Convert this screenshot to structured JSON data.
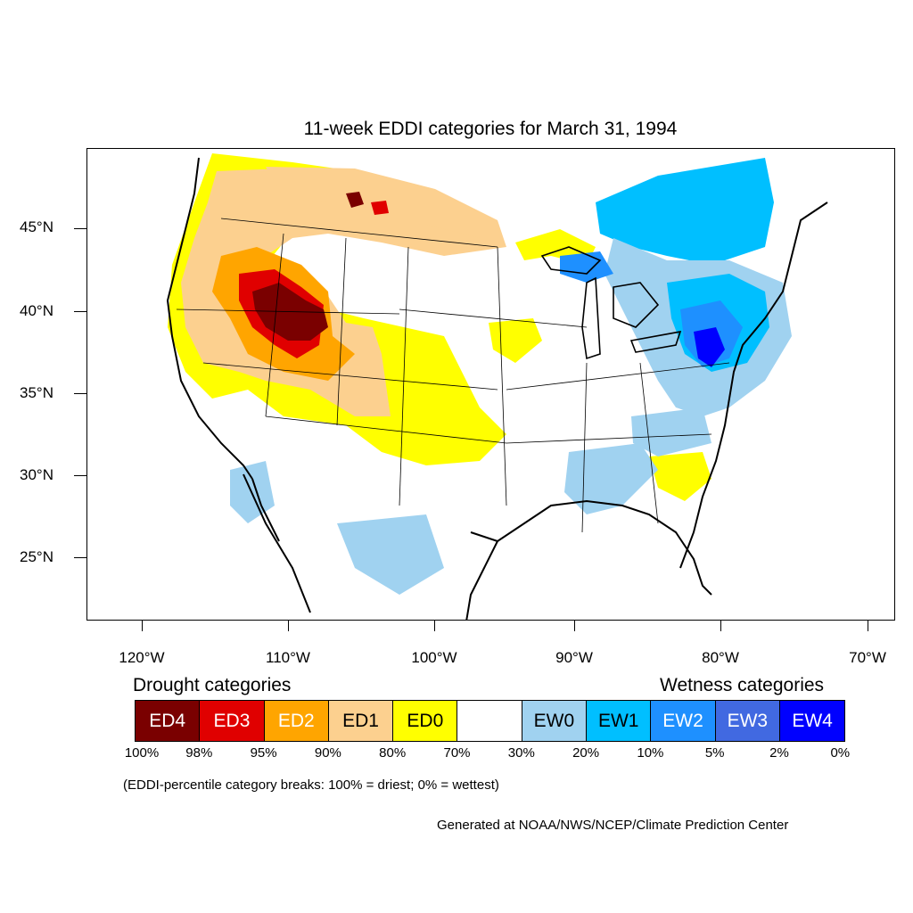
{
  "title": "11-week EDDI categories for March 31, 1994",
  "axes": {
    "y_labels": [
      "45°N",
      "40°N",
      "35°N",
      "30°N",
      "25°N"
    ],
    "x_labels": [
      "120°W",
      "110°W",
      "100°W",
      "90°W",
      "80°W",
      "70°W"
    ]
  },
  "legend": {
    "drought_heading": "Drought categories",
    "wetness_heading": "Wetness categories",
    "categories": [
      {
        "label": "ED4",
        "color": "#7a0000",
        "text_color": "#ffffff"
      },
      {
        "label": "ED3",
        "color": "#e00000",
        "text_color": "#ffffff"
      },
      {
        "label": "ED2",
        "color": "#ffa500",
        "text_color": "#ffffff"
      },
      {
        "label": "ED1",
        "color": "#fcd08f",
        "text_color": "#000000"
      },
      {
        "label": "ED0",
        "color": "#ffff00",
        "text_color": "#000000"
      },
      {
        "label": "",
        "color": "#ffffff",
        "text_color": "#000000"
      },
      {
        "label": "EW0",
        "color": "#a0d2f0",
        "text_color": "#000000"
      },
      {
        "label": "EW1",
        "color": "#00bfff",
        "text_color": "#000000"
      },
      {
        "label": "EW2",
        "color": "#1e90ff",
        "text_color": "#ffffff"
      },
      {
        "label": "EW3",
        "color": "#4169e1",
        "text_color": "#ffffff"
      },
      {
        "label": "EW4",
        "color": "#0000ff",
        "text_color": "#ffffff"
      }
    ],
    "breaks": [
      "100%",
      "98%",
      "95%",
      "90%",
      "80%",
      "70%",
      "30%",
      "20%",
      "10%",
      "5%",
      "2%",
      "0%"
    ]
  },
  "note": "(EDDI-percentile category breaks: 100% = driest; 0% = wettest)",
  "credit": "Generated at NOAA/NWS/NCEP/Climate Prediction Center"
}
